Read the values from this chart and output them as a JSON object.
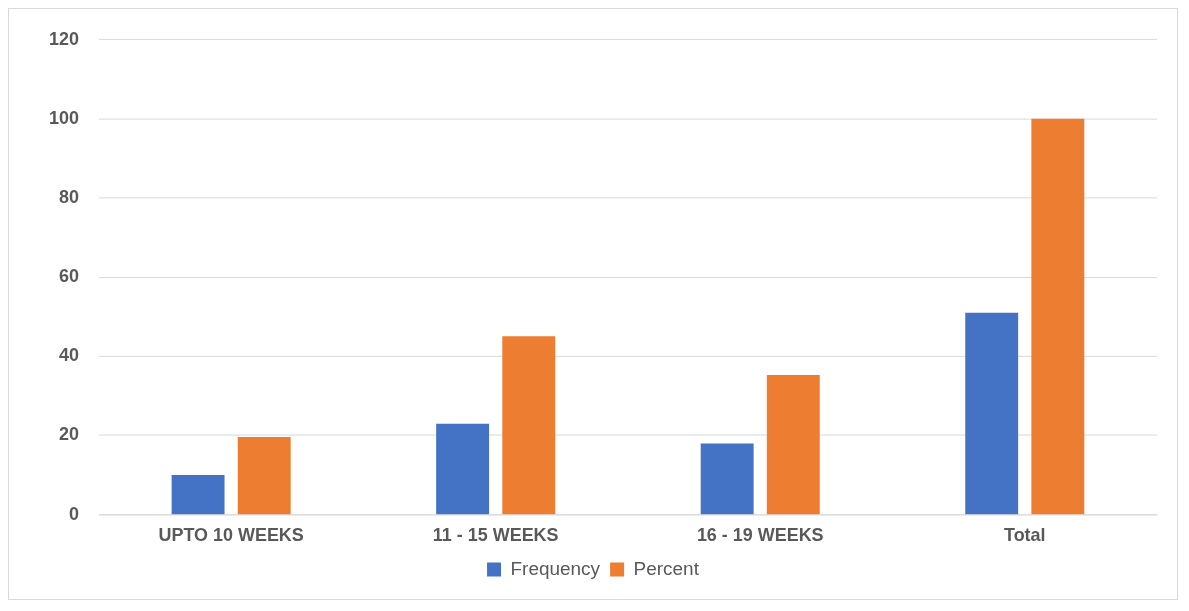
{
  "chart_data": {
    "type": "bar",
    "categories": [
      "UPTO 10 WEEKS",
      "11 - 15 WEEKS",
      "16 - 19 WEEKS",
      "Total"
    ],
    "series": [
      {
        "name": "Frequency",
        "color": "#4472c4",
        "values": [
          10,
          23,
          18,
          51
        ]
      },
      {
        "name": "Percent",
        "color": "#ed7d31",
        "values": [
          19.6,
          45.1,
          35.3,
          100
        ]
      }
    ],
    "ylim": [
      0,
      120
    ],
    "yticks": [
      0,
      20,
      40,
      60,
      80,
      100,
      120
    ],
    "grid": "y",
    "legend": "bottom"
  }
}
